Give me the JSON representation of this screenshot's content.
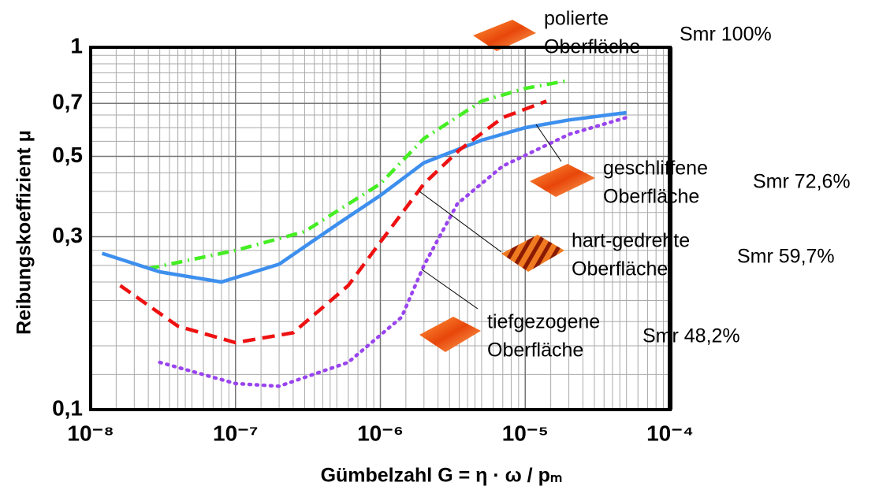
{
  "chart_data": {
    "type": "line",
    "xlabel": "Gümbelzahl  G = η · ω / pₘ",
    "ylabel": "Reibungskoeffizient μ",
    "xscale": "log",
    "yscale": "log",
    "grid": true,
    "xlim": [
      1e-08,
      0.0001
    ],
    "xticks": [
      {
        "value": 1e-08,
        "label": "10⁻⁸"
      },
      {
        "value": 1e-07,
        "label": "10⁻⁷"
      },
      {
        "value": 1e-06,
        "label": "10⁻⁶"
      },
      {
        "value": 1e-05,
        "label": "10⁻⁵"
      },
      {
        "value": 0.0001,
        "label": "10⁻⁴"
      }
    ],
    "ylim": [
      0.1,
      1
    ],
    "yticks": [
      {
        "value": 0.1,
        "label": "0,1"
      },
      {
        "value": 0.3,
        "label": "0,3"
      },
      {
        "value": 0.5,
        "label": "0,5"
      },
      {
        "value": 0.7,
        "label": "0,7"
      },
      1
    ],
    "series": [
      {
        "label": [
          "polierte",
          "Oberfläche"
        ],
        "smr": "Smr 100%",
        "color": "#44ee22",
        "style": "dashdot",
        "x": [
          2.5e-08,
          1e-07,
          3e-07,
          1e-06,
          2e-06,
          5e-06,
          1e-05,
          2e-05
        ],
        "values": [
          0.245,
          0.275,
          0.31,
          0.42,
          0.56,
          0.71,
          0.77,
          0.81
        ]
      },
      {
        "label": [
          "geschliffene",
          "Oberfläche"
        ],
        "smr": "Smr 72,6%",
        "color": "#3d8fee",
        "style": "solid",
        "x": [
          1.2e-08,
          3e-08,
          8e-08,
          2e-07,
          5e-07,
          1e-06,
          2e-06,
          5e-06,
          1e-05,
          2e-05,
          5e-05
        ],
        "values": [
          0.27,
          0.24,
          0.225,
          0.252,
          0.324,
          0.39,
          0.48,
          0.554,
          0.6,
          0.63,
          0.66
        ]
      },
      {
        "label": [
          "hart-gedrehte",
          "Oberfläche"
        ],
        "smr": "Smr 59,7%",
        "color": "#ee1111",
        "style": "dashed",
        "x": [
          1.6e-08,
          4e-08,
          1e-07,
          2.5e-07,
          6e-07,
          1e-06,
          2e-06,
          3.5e-06,
          7e-06,
          1.4e-05
        ],
        "values": [
          0.22,
          0.17,
          0.153,
          0.163,
          0.22,
          0.29,
          0.42,
          0.52,
          0.64,
          0.71
        ]
      },
      {
        "label": [
          "tiefgezogene",
          "Oberfläche"
        ],
        "smr": "Smr 48,2%",
        "color": "#9944ee",
        "style": "dotted",
        "x": [
          3e-08,
          1e-07,
          2e-07,
          6e-07,
          1.4e-06,
          2e-06,
          3.4e-06,
          7e-06,
          2e-05,
          5e-05
        ],
        "values": [
          0.135,
          0.118,
          0.116,
          0.135,
          0.18,
          0.25,
          0.37,
          0.47,
          0.575,
          0.64
        ]
      }
    ]
  }
}
